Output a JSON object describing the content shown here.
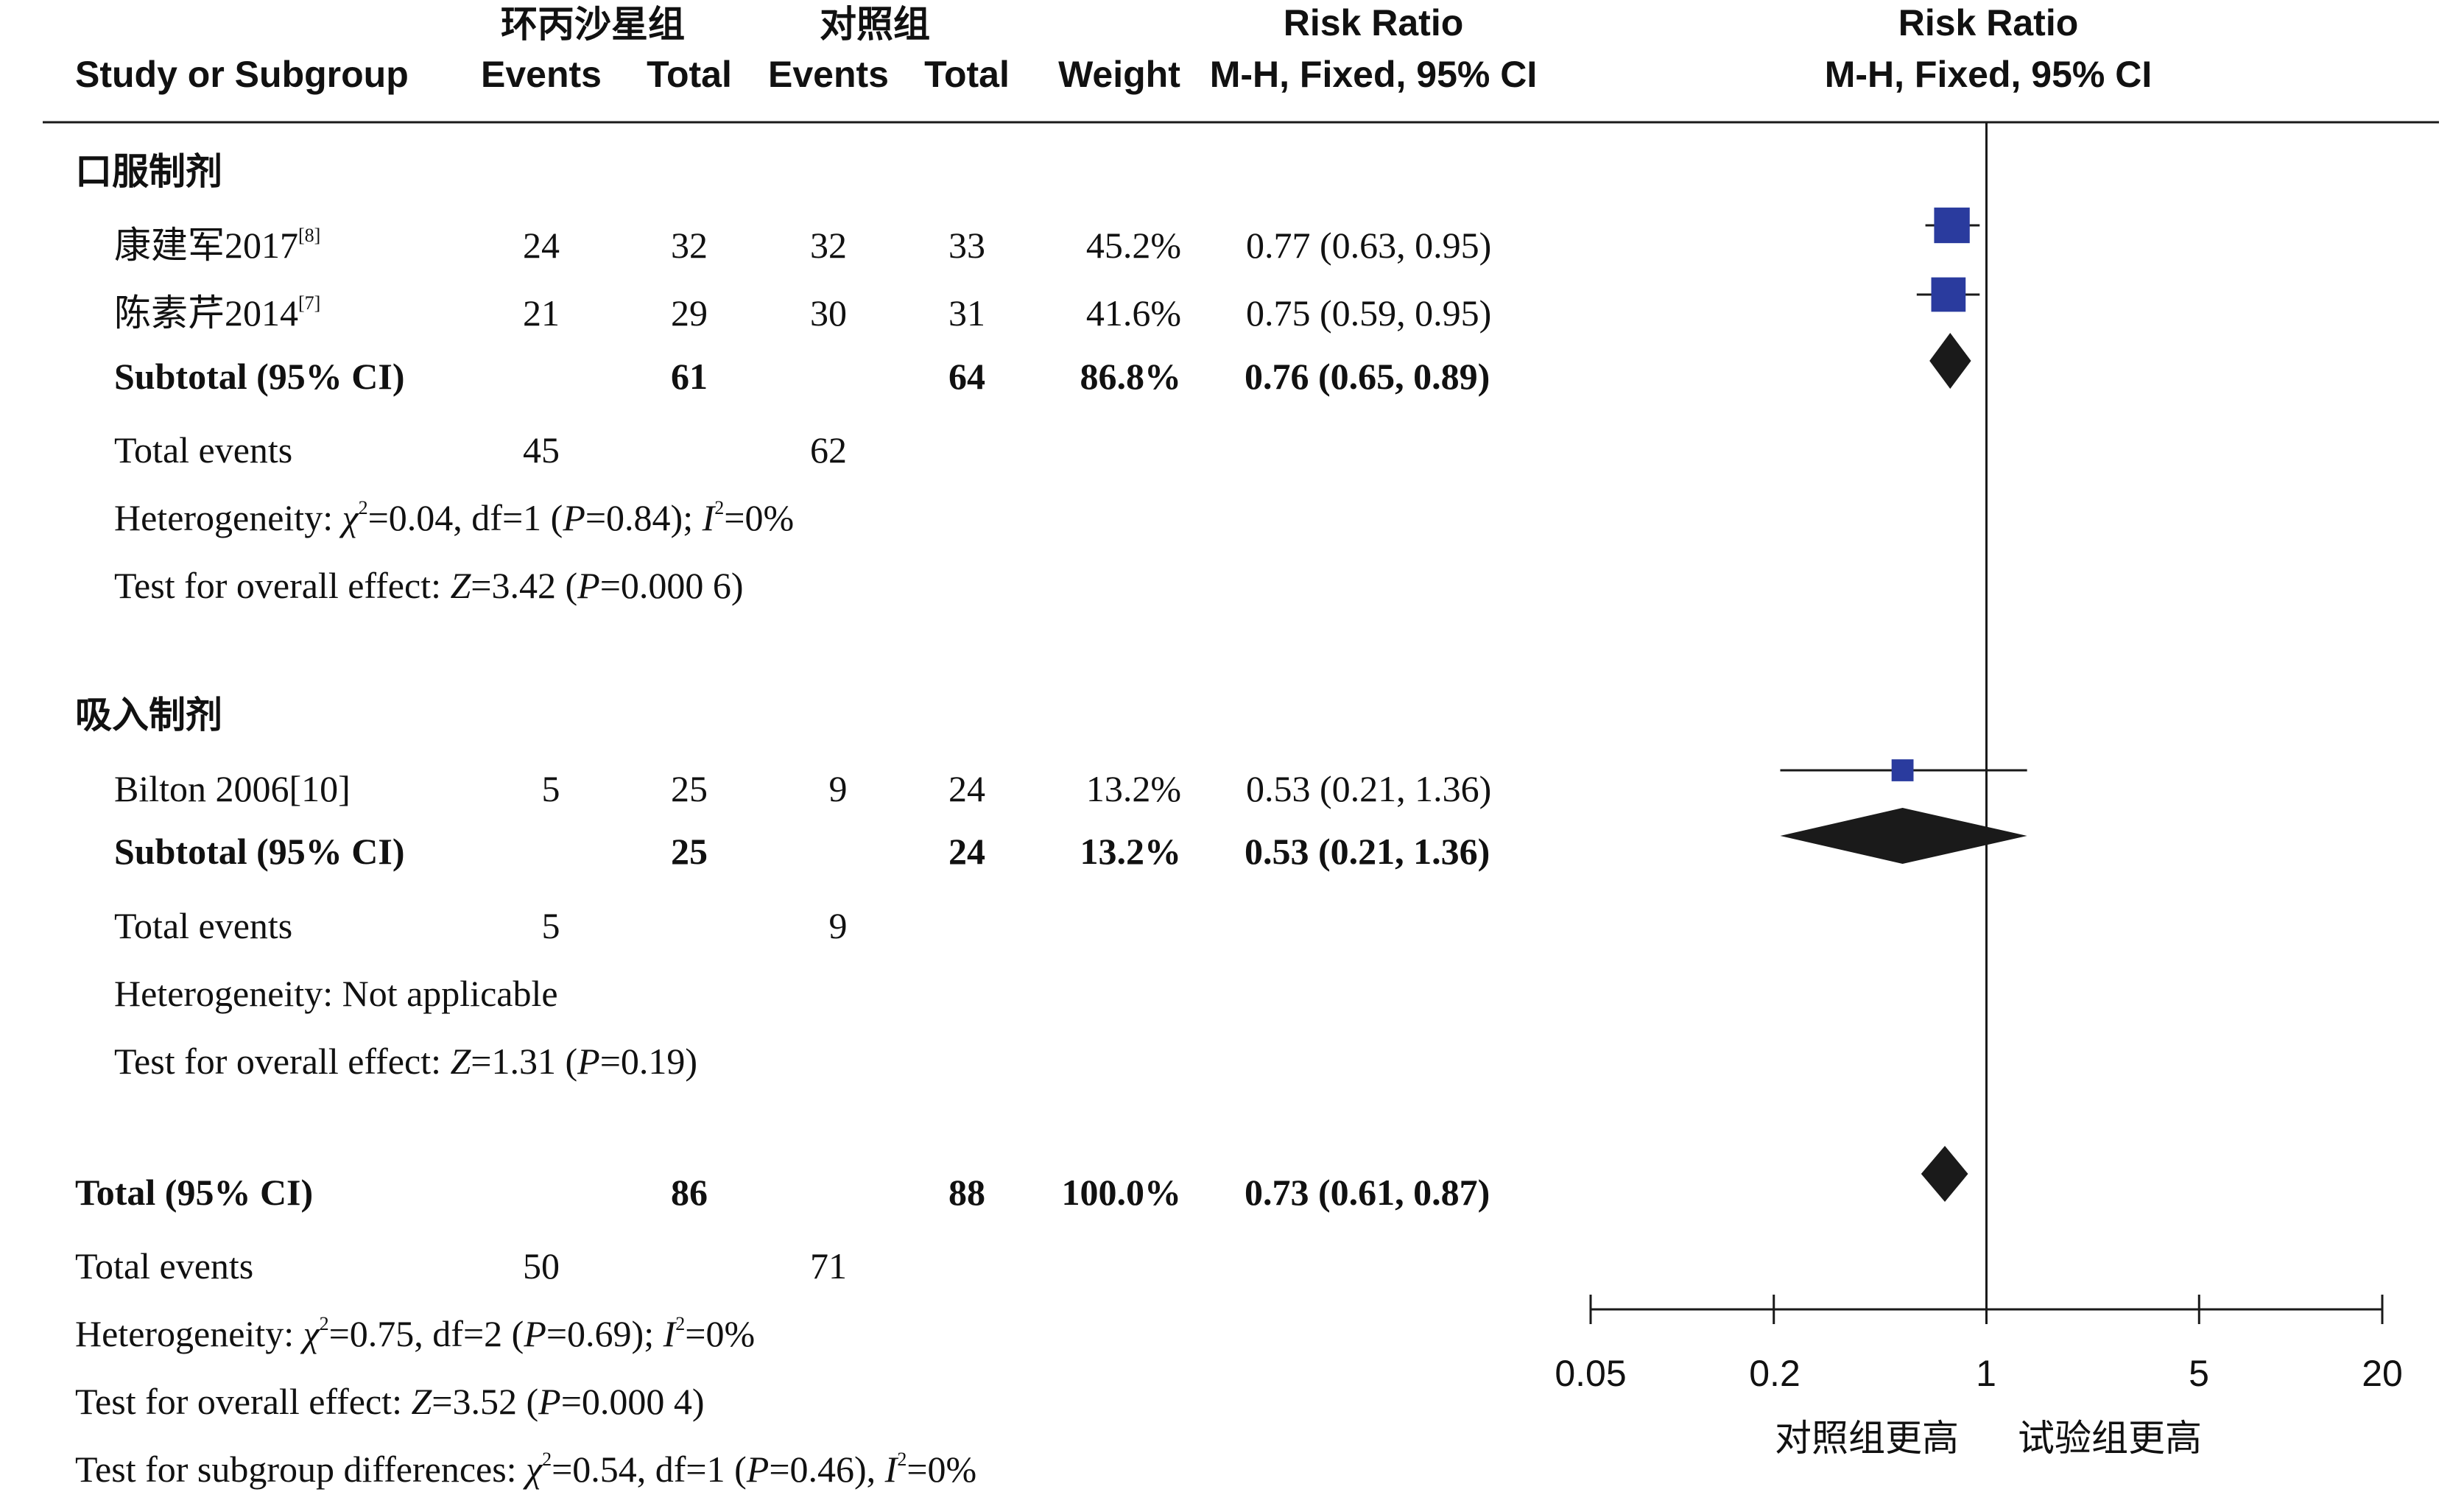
{
  "header": {
    "group1_name": "环丙沙星组",
    "group2_name": "对照组",
    "study_col": "Study or Subgroup",
    "events1": "Events",
    "total1": "Total",
    "events2": "Events",
    "total2": "Total",
    "weight": "Weight",
    "rr_title": "Risk Ratio",
    "rr_method": "M-H, Fixed, 95% CI",
    "plot_title": "Risk Ratio",
    "plot_method": "M-H, Fixed, 95% CI"
  },
  "subgroups": [
    {
      "name": "口服制剂",
      "studies": [
        {
          "name": "康建军2017",
          "ref": "[8]",
          "events1": "24",
          "total1": "32",
          "events2": "32",
          "total2": "33",
          "weight": "45.2%",
          "ci_text": "0.77 (0.63, 0.95)"
        },
        {
          "name": "陈素芹2014",
          "ref": "[7]",
          "events1": "21",
          "total1": "29",
          "events2": "30",
          "total2": "31",
          "weight": "41.6%",
          "ci_text": "0.75 (0.59, 0.95)"
        }
      ],
      "subtotal": {
        "label": "Subtotal (95% CI)",
        "total1": "61",
        "total2": "64",
        "weight": "86.8%",
        "ci_text": "0.76 (0.65, 0.89)"
      },
      "total_events": {
        "label": "Total events",
        "events1": "45",
        "events2": "62"
      },
      "heterogeneity": {
        "prefix": "Heterogeneity: ",
        "chi": "χ",
        "chi_sup": "2",
        "chi_val": "=0.04, df=1 (",
        "p": "P",
        "p_val": "=0.84); ",
        "i": "I",
        "i_sup": "2",
        "i_val": "=0%"
      },
      "overall": {
        "prefix": "Test for overall effect: ",
        "z": "Z",
        "z_val": "=3.42 (",
        "p": "P",
        "p_val": "=0.000 6)"
      }
    },
    {
      "name": "吸入制剂",
      "studies": [
        {
          "name": "Bilton 2006[10]",
          "ref": "",
          "events1": "5",
          "total1": "25",
          "events2": "9",
          "total2": "24",
          "weight": "13.2%",
          "ci_text": "0.53 (0.21, 1.36)"
        }
      ],
      "subtotal": {
        "label": "Subtotal (95% CI)",
        "total1": "25",
        "total2": "24",
        "weight": "13.2%",
        "ci_text": "0.53 (0.21, 1.36)"
      },
      "total_events": {
        "label": "Total events",
        "events1": "5",
        "events2": "9"
      },
      "heterogeneity": {
        "text": "Heterogeneity: Not applicable"
      },
      "overall": {
        "prefix": "Test for overall effect: ",
        "z": "Z",
        "z_val": "=1.31 (",
        "p": "P",
        "p_val": "=0.19)"
      }
    }
  ],
  "total": {
    "label": "Total (95% CI)",
    "total1": "86",
    "total2": "88",
    "weight": "100.0%",
    "ci_text": "0.73 (0.61, 0.87)",
    "total_events": {
      "label": "Total events",
      "events1": "50",
      "events2": "71"
    },
    "heterogeneity": {
      "prefix": "Heterogeneity: ",
      "chi": "χ",
      "chi_sup": "2",
      "chi_val": "=0.75, df=2 (",
      "p": "P",
      "p_val": "=0.69); ",
      "i": "I",
      "i_sup": "2",
      "i_val": "=0%"
    },
    "overall": {
      "prefix": "Test for overall effect: ",
      "z": "Z",
      "z_val": "=3.52 (",
      "p": "P",
      "p_val": "=0.000 4)"
    },
    "subgroup_diff": {
      "prefix": "Test for subgroup differences: ",
      "chi": "χ",
      "chi_sup": "2",
      "chi_val": "=0.54, df=1 (",
      "p": "P",
      "p_val": "=0.46), ",
      "i": "I",
      "i_sup": "2",
      "i_val": "=0%"
    }
  },
  "axis": {
    "ticks": [
      "0.05",
      "0.2",
      "1",
      "5",
      "20"
    ],
    "favours_left": "对照组更高",
    "favours_right": "试验组更高"
  },
  "colors": {
    "study_marker": "#2a3b9e",
    "diamond": "#1a1a1a",
    "line": "#1a1a1a"
  },
  "chart_data": {
    "type": "forest",
    "scale": "log",
    "xlim": [
      0.05,
      20
    ],
    "reference_line": 1,
    "ticks": [
      0.05,
      0.2,
      1,
      5,
      20
    ],
    "studies": [
      {
        "name": "康建军2017",
        "rr": 0.77,
        "lo": 0.63,
        "hi": 0.95,
        "weight": 45.2
      },
      {
        "name": "陈素芹2014",
        "rr": 0.75,
        "lo": 0.59,
        "hi": 0.95,
        "weight": 41.6
      },
      {
        "name": "Bilton 2006",
        "rr": 0.53,
        "lo": 0.21,
        "hi": 1.36,
        "weight": 13.2
      }
    ],
    "subtotals": [
      {
        "name": "口服制剂",
        "rr": 0.76,
        "lo": 0.65,
        "hi": 0.89
      },
      {
        "name": "吸入制剂",
        "rr": 0.53,
        "lo": 0.21,
        "hi": 1.36
      }
    ],
    "overall": {
      "rr": 0.73,
      "lo": 0.61,
      "hi": 0.87
    }
  }
}
